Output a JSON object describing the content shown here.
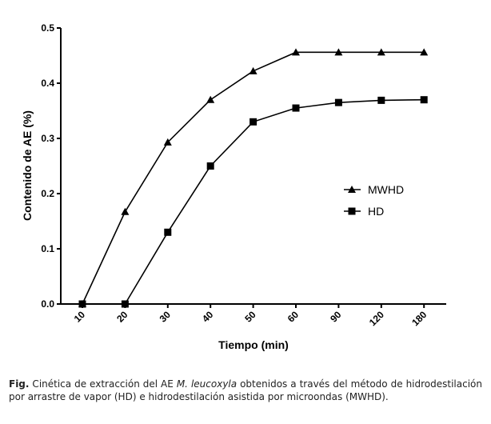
{
  "chart_data": {
    "type": "line",
    "title": "",
    "xlabel": "Tiempo (min)",
    "ylabel": "Contenido de AE (%)",
    "categories": [
      "10",
      "20",
      "30",
      "40",
      "50",
      "60",
      "90",
      "120",
      "180"
    ],
    "ylim": [
      0,
      0.5
    ],
    "yticks": [
      "0.0",
      "0.1",
      "0.2",
      "0.3",
      "0.4",
      "0.5"
    ],
    "grid": false,
    "legend_position": "center-right",
    "series": [
      {
        "name": "MWHD",
        "marker": "triangle",
        "values": [
          0,
          0.167,
          0.293,
          0.37,
          0.422,
          0.456,
          0.456,
          0.456,
          0.456
        ]
      },
      {
        "name": "HD",
        "marker": "square",
        "values": [
          0,
          0,
          0.13,
          0.25,
          0.33,
          0.355,
          0.365,
          0.369,
          0.37
        ]
      }
    ]
  },
  "caption": {
    "label": "Fig.",
    "text_before": " Cinética de extracción del AE ",
    "italic": "M. leucoxyla",
    "text_after": " obtenidos a través del método de hidrodestilación por arrastre de vapor (HD) e hidrodestilación asistida por microondas (MWHD)."
  }
}
